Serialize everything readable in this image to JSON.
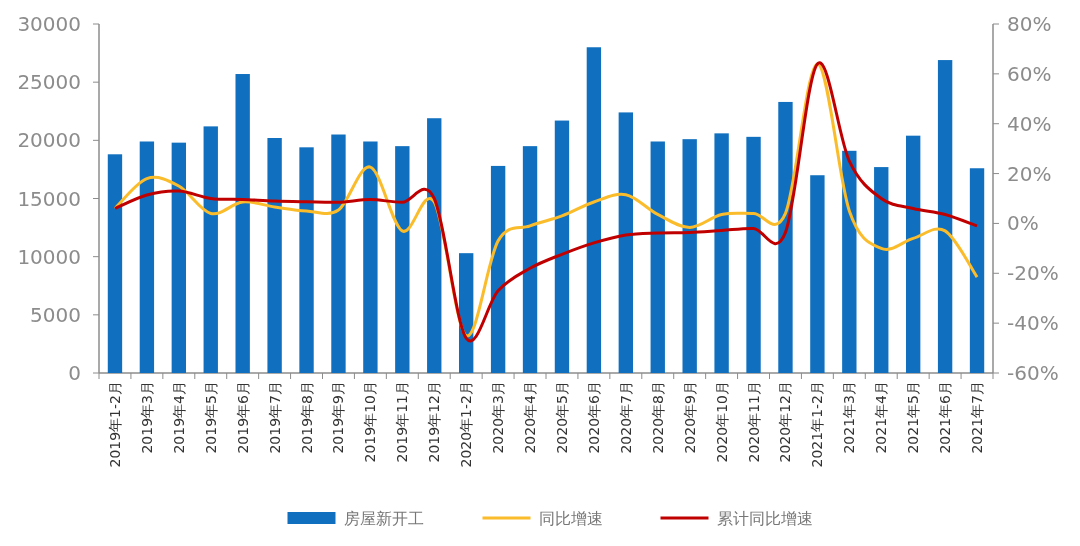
{
  "chart_data": {
    "type": "bar",
    "categories": [
      "2019年1-2月",
      "2019年3月",
      "2019年4月",
      "2019年5月",
      "2019年6月",
      "2019年7月",
      "2019年8月",
      "2019年9月",
      "2019年10月",
      "2019年11月",
      "2019年12月",
      "2020年1-2月",
      "2020年3月",
      "2020年4月",
      "2020年5月",
      "2020年6月",
      "2020年7月",
      "2020年8月",
      "2020年9月",
      "2020年10月",
      "2020年11月",
      "2020年12月",
      "2021年1-2月",
      "2021年3月",
      "2021年4月",
      "2021年5月",
      "2021年6月",
      "2021年7月"
    ],
    "series": [
      {
        "name": "房屋新开工",
        "color": "#1070bf",
        "values": [
          18800,
          19900,
          19800,
          21200,
          25700,
          20200,
          19400,
          20500,
          19900,
          19500,
          21900,
          10300,
          17800,
          19500,
          21700,
          28000,
          22400,
          19900,
          20100,
          20600,
          20300,
          23300,
          17000,
          19100,
          17700,
          20400,
          26900,
          17600
        ]
      },
      {
        "name": "同比增速",
        "type": "line",
        "axis": "y2",
        "color": "#fbbc2b",
        "values": [
          6,
          18,
          15,
          4,
          8.6,
          6.6,
          5,
          5.4,
          22.6,
          -3,
          8.6,
          -45,
          -7,
          -1,
          3,
          8.6,
          11.5,
          3.6,
          -1.6,
          3.6,
          4,
          4,
          64,
          5,
          -10,
          -6,
          -3,
          -21.5
        ]
      },
      {
        "name": "累计同比增速",
        "type": "line",
        "axis": "y2",
        "color": "#c00000",
        "values": [
          6,
          11.4,
          13,
          10,
          9.6,
          9,
          8.7,
          8.5,
          9.6,
          8.5,
          10,
          -46,
          -27,
          -18,
          -12.4,
          -7.8,
          -4.6,
          -3.8,
          -3.6,
          -2.8,
          -2,
          -3.6,
          64,
          25,
          10,
          6,
          3.6,
          -1
        ]
      }
    ],
    "ylim": [
      0,
      30000
    ],
    "yticks": [
      0,
      5000,
      10000,
      15000,
      20000,
      25000,
      30000
    ],
    "y2lim": [
      -60,
      80
    ],
    "y2ticks": [
      {
        "value": -60,
        "label": "-60%"
      },
      {
        "value": -40,
        "label": "-40%"
      },
      {
        "value": -20,
        "label": "-20%"
      },
      {
        "value": 0,
        "label": "0%"
      },
      {
        "value": 20,
        "label": "20%"
      },
      {
        "value": 40,
        "label": "40%"
      },
      {
        "value": 60,
        "label": "60%"
      },
      {
        "value": 80,
        "label": "80%"
      }
    ],
    "grid": false,
    "legend": "bottom",
    "line_style": "solid",
    "marker": "none"
  }
}
